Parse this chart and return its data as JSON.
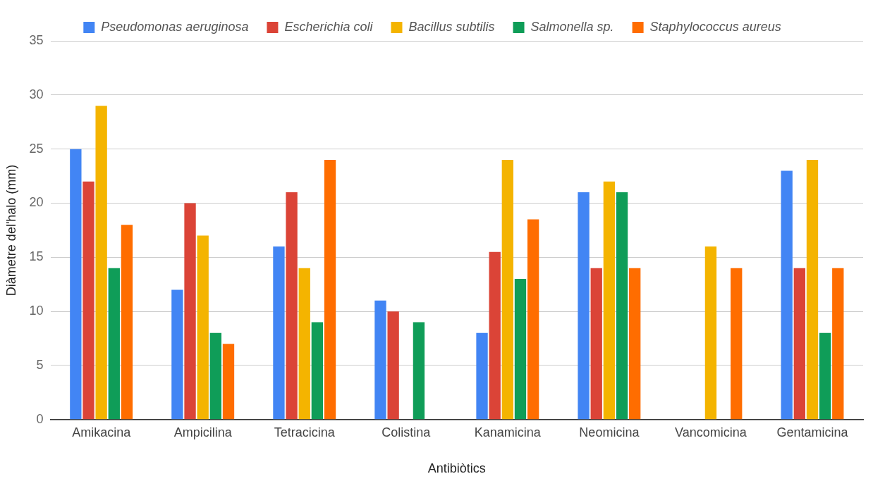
{
  "chart_data": {
    "type": "bar",
    "xlabel": "Antibiòtics",
    "ylabel": "Diàmetre del'halo (mm)",
    "categories": [
      "Amikacina",
      "Ampicilina",
      "Tetracicina",
      "Colistina",
      "Kanamicina",
      "Neomicina",
      "Vancomicina",
      "Gentamicina"
    ],
    "series": [
      {
        "name": "Pseudomonas aeruginosa",
        "color": "#4285f4",
        "values": [
          25,
          12,
          16,
          11,
          8,
          21,
          null,
          23
        ]
      },
      {
        "name": "Escherichia coli",
        "color": "#db4437",
        "values": [
          22,
          20,
          21,
          10,
          15.5,
          14,
          null,
          14
        ]
      },
      {
        "name": "Bacillus subtilis",
        "color": "#f4b400",
        "values": [
          29,
          17,
          14,
          null,
          24,
          22,
          16,
          24
        ]
      },
      {
        "name": "Salmonella sp.",
        "color": "#0f9d58",
        "values": [
          14,
          8,
          9,
          9,
          13,
          21,
          null,
          8
        ]
      },
      {
        "name": "Staphylococcus aureus",
        "color": "#ff6d00",
        "values": [
          18,
          7,
          24,
          null,
          18.5,
          14,
          14,
          14
        ]
      }
    ],
    "ylim": [
      0,
      35
    ],
    "yticks": [
      0,
      5,
      10,
      15,
      20,
      25,
      30,
      35
    ],
    "grid": "y",
    "legend": "top"
  }
}
